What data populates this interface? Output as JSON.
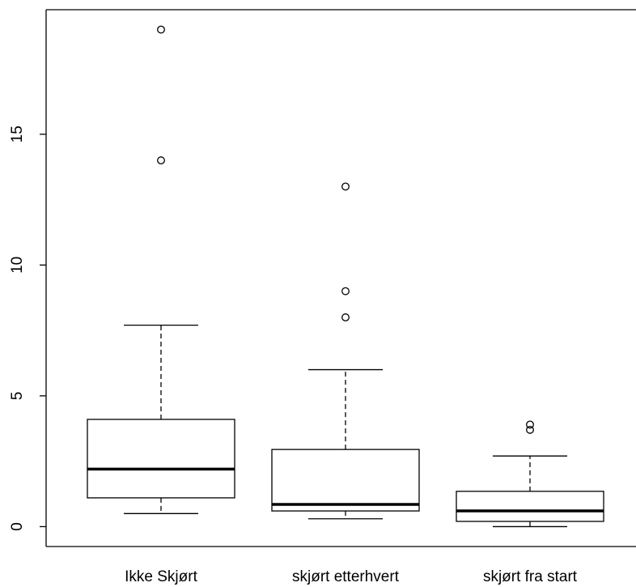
{
  "chart_data": {
    "type": "box",
    "categories": [
      "Ikke Skjørt",
      "skjørt etterhvert",
      "skjørt fra start"
    ],
    "boxes": [
      {
        "whisker_low": 0.5,
        "q1": 1.1,
        "median": 2.2,
        "q3": 4.1,
        "whisker_high": 7.7,
        "outliers": [
          14,
          19
        ]
      },
      {
        "whisker_low": 0.3,
        "q1": 0.6,
        "median": 0.85,
        "q3": 2.95,
        "whisker_high": 6,
        "outliers": [
          8,
          9,
          13
        ]
      },
      {
        "whisker_low": 0,
        "q1": 0.2,
        "median": 0.6,
        "q3": 1.35,
        "whisker_high": 2.7,
        "outliers": [
          3.7,
          3.9
        ]
      }
    ],
    "color": "#000000",
    "ylim": [
      -0.76,
      19.76
    ],
    "yticks": [
      0,
      5,
      10,
      15
    ]
  }
}
